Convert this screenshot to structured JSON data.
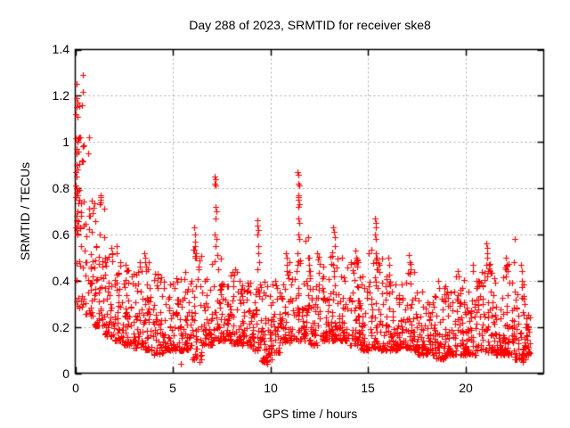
{
  "chart_data": {
    "type": "scatter",
    "title": "Day 288 of 2023, SRMTID for receiver ske8",
    "xlabel": "GPS time / hours",
    "ylabel": "SRMTID / TECUs",
    "xlim": [
      0,
      24
    ],
    "ylim": [
      0,
      1.4
    ],
    "xticks": [
      "0",
      "5",
      "10",
      "15",
      "20"
    ],
    "xtick_values": [
      0,
      5,
      10,
      15,
      20
    ],
    "yticks": [
      "0",
      "0.2",
      "0.4",
      "0.6",
      "0.8",
      "1",
      "1.2",
      "1.4"
    ],
    "ytick_values": [
      0,
      0.2,
      0.4,
      0.6,
      0.8,
      1.0,
      1.2,
      1.4
    ],
    "grid": true,
    "grid_style": "dashed",
    "grid_color": "#a8a8a8",
    "border_color": "#000000",
    "marker": "plus",
    "marker_color": "#ff0000",
    "legend": "none",
    "n_points_estimate": 2000,
    "seed": 11,
    "feature_points": [
      [
        0.05,
        1.25
      ],
      [
        0.06,
        1.19
      ],
      [
        0.1,
        1.17
      ],
      [
        0.08,
        1.15
      ],
      [
        0.04,
        1.12
      ],
      [
        0.12,
        1.11
      ],
      [
        0.37,
        1.29
      ],
      [
        0.35,
        1.16
      ],
      [
        0.1,
        1.0
      ],
      [
        0.06,
        0.97
      ],
      [
        0.14,
        0.96
      ],
      [
        0.7,
        1.02
      ],
      [
        0.68,
        0.95
      ],
      [
        0.09,
        0.95
      ],
      [
        0.4,
        0.98
      ],
      [
        0.33,
        0.92
      ],
      [
        0.05,
        0.9
      ],
      [
        0.11,
        0.88
      ],
      [
        0.07,
        0.85
      ],
      [
        0.03,
        0.81
      ],
      [
        0.09,
        0.8
      ],
      [
        0.13,
        0.79
      ],
      [
        0.06,
        0.78
      ],
      [
        0.1,
        0.77
      ],
      [
        0.04,
        0.76
      ],
      [
        0.12,
        0.7
      ],
      [
        0.08,
        0.68
      ],
      [
        0.72,
        0.71
      ],
      [
        0.75,
        0.68
      ],
      [
        0.05,
        0.66
      ],
      [
        0.11,
        0.64
      ],
      [
        0.07,
        0.62
      ],
      [
        0.13,
        0.6
      ],
      [
        1.28,
        0.77
      ],
      [
        1.3,
        0.76
      ],
      [
        1.32,
        0.75
      ],
      [
        1.29,
        0.74
      ],
      [
        1.27,
        0.73
      ],
      [
        1.85,
        0.54
      ],
      [
        1.88,
        0.52
      ],
      [
        2.1,
        0.55
      ],
      [
        2.12,
        0.52
      ],
      [
        2.6,
        0.47
      ],
      [
        2.62,
        0.44
      ],
      [
        3.3,
        0.48
      ],
      [
        3.33,
        0.46
      ],
      [
        3.55,
        0.52
      ],
      [
        3.58,
        0.5
      ],
      [
        3.6,
        0.48
      ],
      [
        3.62,
        0.46
      ],
      [
        3.65,
        0.44
      ],
      [
        4.2,
        0.43
      ],
      [
        4.23,
        0.41
      ],
      [
        5.4,
        0.04
      ],
      [
        6.35,
        0.05
      ],
      [
        6.1,
        0.63
      ],
      [
        6.12,
        0.6
      ],
      [
        6.15,
        0.57
      ],
      [
        6.13,
        0.55
      ],
      [
        6.18,
        0.52
      ],
      [
        6.2,
        0.5
      ],
      [
        7.15,
        0.85
      ],
      [
        7.18,
        0.84
      ],
      [
        7.16,
        0.82
      ],
      [
        7.2,
        0.81
      ],
      [
        7.17,
        0.72
      ],
      [
        7.22,
        0.7
      ],
      [
        7.19,
        0.67
      ],
      [
        7.15,
        0.6
      ],
      [
        7.21,
        0.58
      ],
      [
        7.18,
        0.55
      ],
      [
        9.33,
        0.66
      ],
      [
        9.35,
        0.64
      ],
      [
        9.37,
        0.62
      ],
      [
        9.34,
        0.6
      ],
      [
        9.38,
        0.55
      ],
      [
        9.36,
        0.52
      ],
      [
        9.4,
        0.48
      ],
      [
        9.35,
        0.45
      ],
      [
        9.8,
        0.05
      ],
      [
        9.85,
        0.04
      ],
      [
        10.05,
        0.06
      ],
      [
        10.8,
        0.52
      ],
      [
        10.83,
        0.5
      ],
      [
        10.85,
        0.47
      ],
      [
        10.82,
        0.44
      ],
      [
        11.4,
        0.87
      ],
      [
        11.44,
        0.86
      ],
      [
        11.42,
        0.82
      ],
      [
        11.46,
        0.81
      ],
      [
        11.41,
        0.77
      ],
      [
        11.45,
        0.76
      ],
      [
        11.43,
        0.75
      ],
      [
        11.47,
        0.73
      ],
      [
        11.44,
        0.72
      ],
      [
        11.42,
        0.67
      ],
      [
        11.46,
        0.65
      ],
      [
        11.43,
        0.6
      ],
      [
        11.48,
        0.58
      ],
      [
        11.95,
        0.5
      ],
      [
        11.98,
        0.47
      ],
      [
        12.0,
        0.44
      ],
      [
        12.4,
        0.52
      ],
      [
        12.43,
        0.49
      ],
      [
        13.2,
        0.63
      ],
      [
        13.24,
        0.61
      ],
      [
        13.28,
        0.59
      ],
      [
        13.3,
        0.55
      ],
      [
        13.22,
        0.47
      ],
      [
        13.26,
        0.44
      ],
      [
        14.35,
        0.53
      ],
      [
        14.38,
        0.5
      ],
      [
        14.4,
        0.48
      ],
      [
        14.42,
        0.46
      ],
      [
        15.35,
        0.67
      ],
      [
        15.38,
        0.65
      ],
      [
        15.4,
        0.63
      ],
      [
        15.37,
        0.6
      ],
      [
        15.42,
        0.58
      ],
      [
        15.39,
        0.52
      ],
      [
        15.44,
        0.5
      ],
      [
        15.41,
        0.48
      ],
      [
        15.45,
        0.45
      ],
      [
        16.05,
        0.5
      ],
      [
        16.08,
        0.47
      ],
      [
        17.1,
        0.51
      ],
      [
        17.13,
        0.48
      ],
      [
        17.16,
        0.45
      ],
      [
        17.12,
        0.43
      ],
      [
        18.6,
        0.4
      ],
      [
        18.63,
        0.37
      ],
      [
        19.6,
        0.44
      ],
      [
        19.63,
        0.42
      ],
      [
        20.35,
        0.47
      ],
      [
        20.38,
        0.44
      ],
      [
        21.05,
        0.56
      ],
      [
        21.08,
        0.54
      ],
      [
        21.1,
        0.52
      ],
      [
        21.12,
        0.5
      ],
      [
        21.07,
        0.47
      ],
      [
        21.13,
        0.44
      ],
      [
        22.08,
        0.5
      ],
      [
        22.11,
        0.47
      ],
      [
        22.13,
        0.44
      ],
      [
        22.5,
        0.58
      ],
      [
        22.85,
        0.47
      ],
      [
        22.88,
        0.44
      ],
      [
        22.9,
        0.4
      ],
      [
        22.95,
        0.05
      ],
      [
        23.05,
        0.06
      ]
    ],
    "band_bins": [
      [
        0.0,
        0.5,
        0.28,
        1.25,
        40,
        1.6
      ],
      [
        0.5,
        1.0,
        0.25,
        0.75,
        36,
        1.8
      ],
      [
        1.0,
        1.5,
        0.2,
        0.72,
        40,
        2.0
      ],
      [
        1.5,
        2.0,
        0.16,
        0.54,
        40,
        2.0
      ],
      [
        2.0,
        2.5,
        0.14,
        0.5,
        42,
        2.2
      ],
      [
        2.5,
        3.0,
        0.12,
        0.47,
        42,
        2.2
      ],
      [
        3.0,
        3.5,
        0.11,
        0.48,
        42,
        2.2
      ],
      [
        3.5,
        4.0,
        0.1,
        0.5,
        42,
        2.2
      ],
      [
        4.0,
        4.5,
        0.08,
        0.43,
        42,
        2.2
      ],
      [
        4.5,
        5.0,
        0.1,
        0.4,
        42,
        2.2
      ],
      [
        5.0,
        5.5,
        0.1,
        0.42,
        42,
        2.2
      ],
      [
        5.5,
        6.0,
        0.1,
        0.45,
        40,
        2.2
      ],
      [
        6.0,
        6.5,
        0.06,
        0.55,
        40,
        2.2
      ],
      [
        6.5,
        7.0,
        0.12,
        0.42,
        40,
        2.2
      ],
      [
        7.0,
        7.5,
        0.14,
        0.55,
        40,
        2.0
      ],
      [
        7.5,
        8.0,
        0.14,
        0.45,
        40,
        2.2
      ],
      [
        8.0,
        8.5,
        0.13,
        0.45,
        42,
        2.2
      ],
      [
        8.5,
        9.0,
        0.12,
        0.4,
        42,
        2.2
      ],
      [
        9.0,
        9.5,
        0.1,
        0.42,
        40,
        2.2
      ],
      [
        9.5,
        10.0,
        0.05,
        0.4,
        40,
        2.2
      ],
      [
        10.0,
        10.5,
        0.09,
        0.42,
        42,
        2.2
      ],
      [
        10.5,
        11.0,
        0.13,
        0.52,
        42,
        2.2
      ],
      [
        11.0,
        11.5,
        0.14,
        0.55,
        40,
        2.2
      ],
      [
        11.5,
        12.0,
        0.14,
        0.6,
        40,
        2.2
      ],
      [
        12.0,
        12.5,
        0.12,
        0.52,
        42,
        2.2
      ],
      [
        12.5,
        13.0,
        0.14,
        0.48,
        42,
        2.2
      ],
      [
        13.0,
        13.5,
        0.14,
        0.55,
        42,
        2.2
      ],
      [
        13.5,
        14.0,
        0.14,
        0.5,
        42,
        2.2
      ],
      [
        14.0,
        14.5,
        0.12,
        0.52,
        42,
        2.2
      ],
      [
        14.5,
        15.0,
        0.1,
        0.44,
        42,
        2.2
      ],
      [
        15.0,
        15.5,
        0.11,
        0.55,
        40,
        2.2
      ],
      [
        15.5,
        16.0,
        0.1,
        0.5,
        42,
        2.2
      ],
      [
        16.0,
        16.5,
        0.1,
        0.44,
        42,
        2.2
      ],
      [
        16.5,
        17.0,
        0.11,
        0.4,
        42,
        2.2
      ],
      [
        17.0,
        17.5,
        0.1,
        0.5,
        42,
        2.2
      ],
      [
        17.5,
        18.0,
        0.08,
        0.36,
        42,
        2.2
      ],
      [
        18.0,
        18.5,
        0.08,
        0.34,
        44,
        2.2
      ],
      [
        18.5,
        19.0,
        0.06,
        0.38,
        44,
        2.2
      ],
      [
        19.0,
        19.5,
        0.08,
        0.36,
        42,
        2.2
      ],
      [
        19.5,
        20.0,
        0.08,
        0.42,
        42,
        2.2
      ],
      [
        20.0,
        20.5,
        0.08,
        0.4,
        42,
        2.2
      ],
      [
        20.5,
        21.0,
        0.1,
        0.44,
        42,
        2.2
      ],
      [
        21.0,
        21.5,
        0.09,
        0.52,
        42,
        2.2
      ],
      [
        21.5,
        22.0,
        0.08,
        0.42,
        44,
        2.2
      ],
      [
        22.0,
        22.5,
        0.08,
        0.48,
        44,
        2.2
      ],
      [
        22.5,
        23.0,
        0.06,
        0.4,
        44,
        2.2
      ],
      [
        23.0,
        23.3,
        0.08,
        0.28,
        30,
        2.0
      ]
    ]
  }
}
